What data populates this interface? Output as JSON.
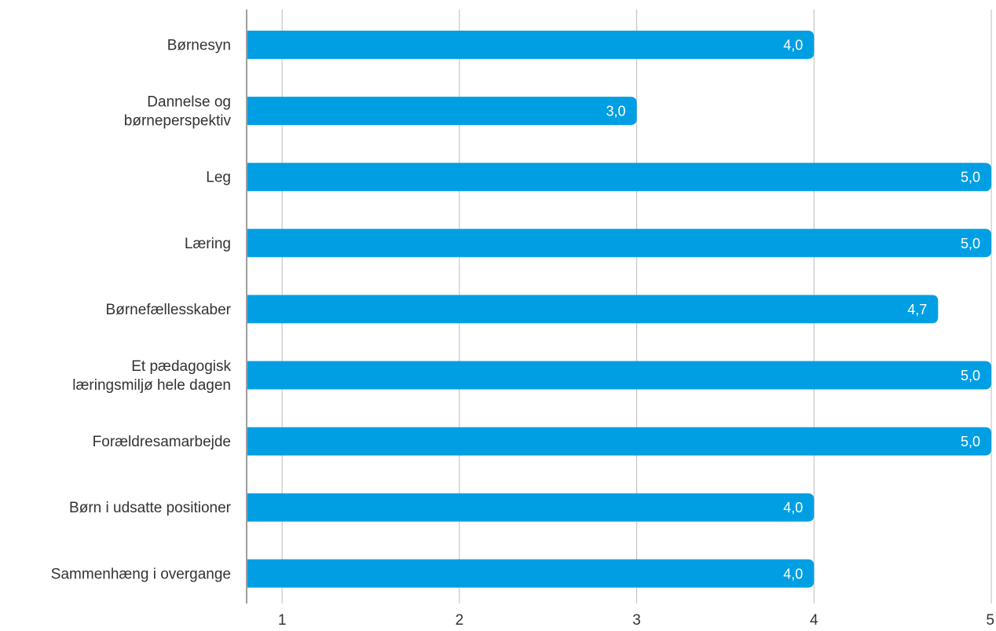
{
  "chart_data": {
    "type": "bar",
    "orientation": "horizontal",
    "categories": [
      "Børnesyn",
      "Dannelse og børneperspektiv",
      "Leg",
      "Læring",
      "Børnefællesskaber",
      "Et pædagogisk læringsmiljø hele dagen",
      "Forældresamarbejde",
      "Børn i udsatte positioner",
      "Sammenhæng i overgange"
    ],
    "category_lines": [
      [
        "Børnesyn"
      ],
      [
        "Dannelse og",
        "børneperspektiv"
      ],
      [
        "Leg"
      ],
      [
        "Læring"
      ],
      [
        "Børnefællesskaber"
      ],
      [
        "Et pædagogisk",
        "læringsmiljø hele dagen"
      ],
      [
        "Forældresamarbejde"
      ],
      [
        "Børn i udsatte positioner"
      ],
      [
        "Sammenhæng i overgange"
      ]
    ],
    "values": [
      4.0,
      3.0,
      5.0,
      5.0,
      4.7,
      5.0,
      5.0,
      4.0,
      4.0
    ],
    "value_labels": [
      "4,0",
      "3,0",
      "5,0",
      "5,0",
      "4,7",
      "5,0",
      "5,0",
      "4,0",
      "4,0"
    ],
    "x_ticks": [
      1,
      2,
      3,
      4,
      5
    ],
    "x_tick_labels": [
      "1",
      "2",
      "3",
      "4",
      "5"
    ],
    "xlim": [
      0.8,
      5
    ],
    "title": "",
    "xlabel": "",
    "ylabel": "",
    "grid": "vertical",
    "legend": "none",
    "bar_color": "#009fe3"
  }
}
